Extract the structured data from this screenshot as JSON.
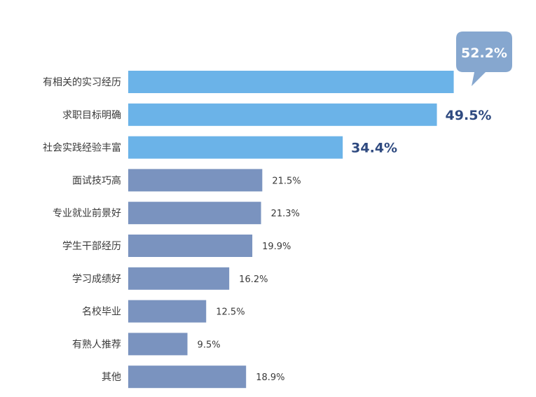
{
  "chart_data": {
    "type": "bar",
    "orientation": "horizontal",
    "categories": [
      "有相关的实习经历",
      "求职目标明确",
      "社会实践经验丰富",
      "面试技巧高",
      "专业就业前景好",
      "学生干部经历",
      "学习成绩好",
      "名校毕业",
      "有熟人推荐",
      "其他"
    ],
    "values": [
      52.2,
      49.5,
      34.4,
      21.5,
      21.3,
      19.9,
      16.2,
      12.5,
      9.5,
      18.9
    ],
    "value_labels": [
      "52.2%",
      "49.5%",
      "34.4%",
      "21.5%",
      "21.3%",
      "19.9%",
      "16.2%",
      "12.5%",
      "9.5%",
      "18.9%"
    ],
    "xlim": [
      0,
      55
    ],
    "grid": false,
    "legend": "none",
    "highlight_count": 3,
    "colors": {
      "highlight": "#6bb3e8",
      "normal": "#7a93bf",
      "callout": "#86a7cf",
      "big_label": "#2f4a80",
      "text": "#3a3a3a"
    }
  }
}
